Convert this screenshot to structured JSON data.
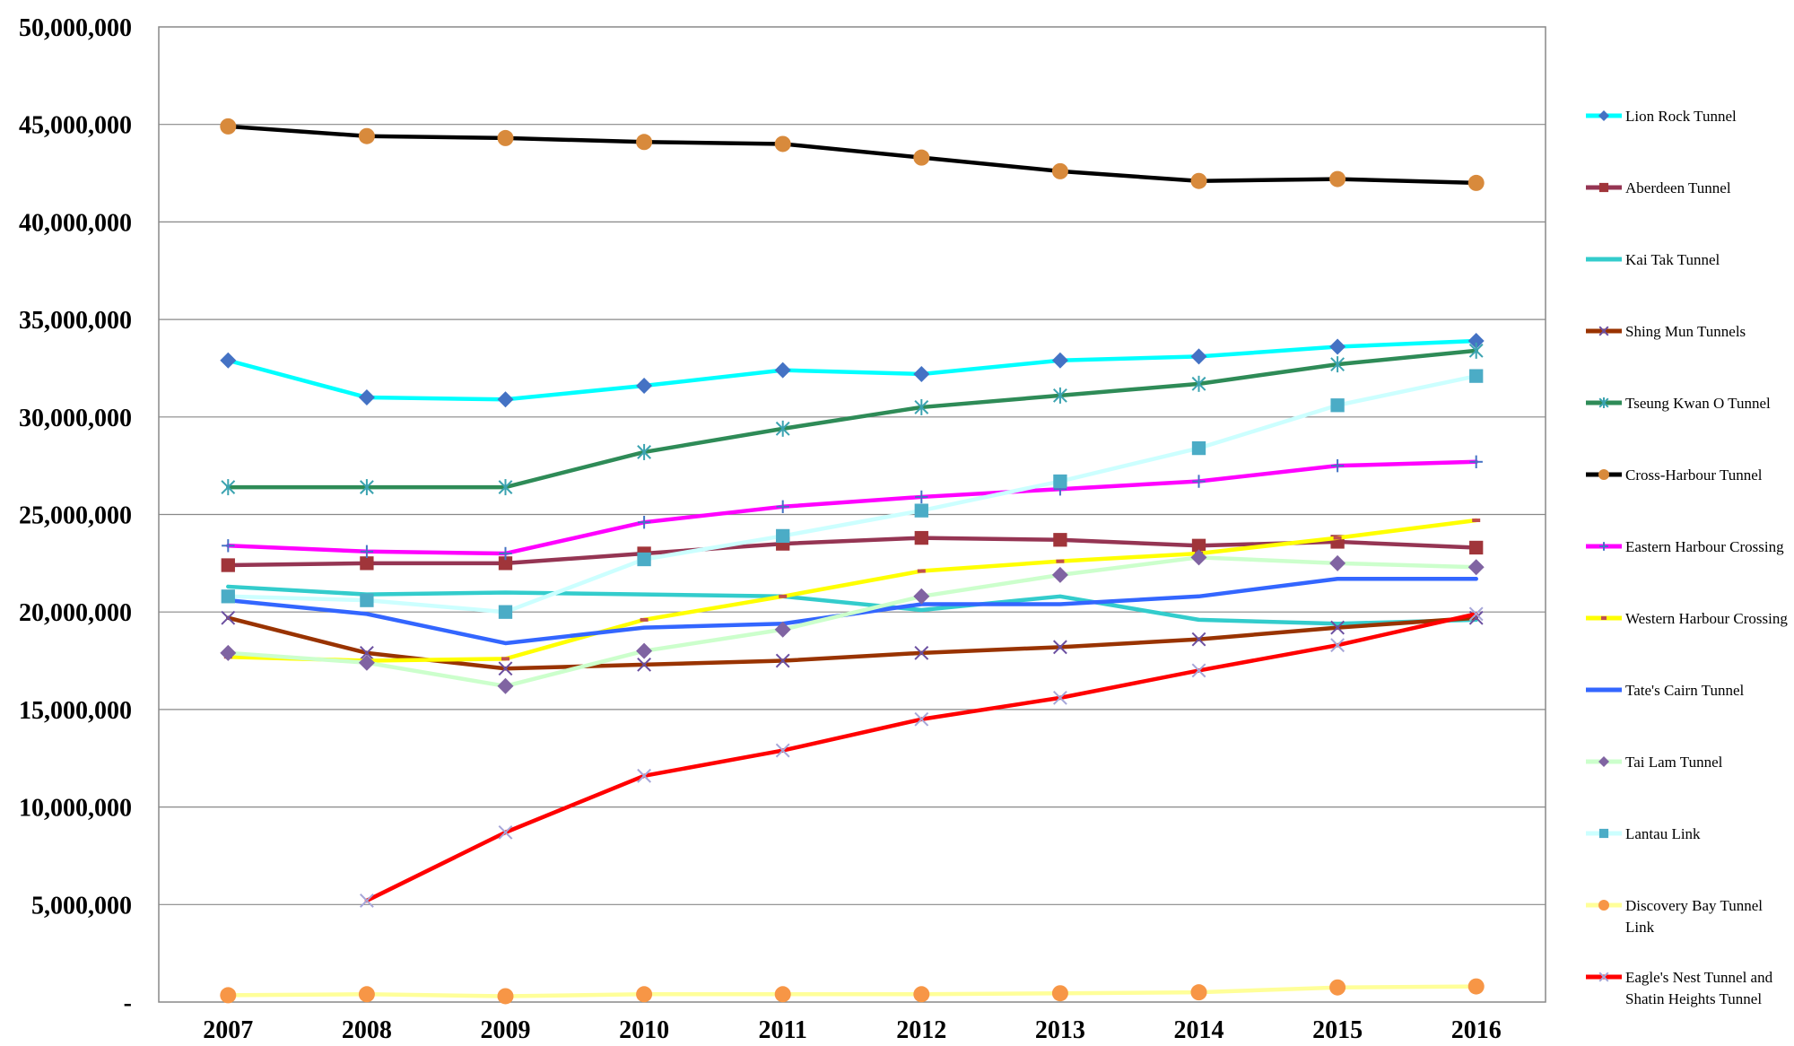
{
  "chart_data": {
    "type": "line",
    "title": "",
    "xlabel": "",
    "ylabel": "",
    "ylim": [
      0,
      50000000
    ],
    "grid": "horizontal",
    "legend_position": "right",
    "x": [
      2007,
      2008,
      2009,
      2010,
      2011,
      2012,
      2013,
      2014,
      2015,
      2016
    ],
    "x_tick_labels": [
      "2007",
      "2008",
      "2009",
      "2010",
      "2011",
      "2012",
      "2013",
      "2014",
      "2015",
      "2016"
    ],
    "y_tick_labels": [
      "-",
      "5,000,000",
      "10,000,000",
      "15,000,000",
      "20,000,000",
      "25,000,000",
      "30,000,000",
      "35,000,000",
      "40,000,000",
      "45,000,000",
      "50,000,000"
    ],
    "series": [
      {
        "name": "Lion Rock Tunnel",
        "line_color": "#00FFFF",
        "marker": "diamond",
        "marker_color": "#4472C4",
        "values": [
          32900000,
          31000000,
          30900000,
          31600000,
          32400000,
          32200000,
          32900000,
          33100000,
          33600000,
          33900000
        ]
      },
      {
        "name": "Aberdeen Tunnel",
        "line_color": "#953553",
        "marker": "square",
        "marker_color": "#A0353A",
        "values": [
          22400000,
          22500000,
          22500000,
          23000000,
          23500000,
          23800000,
          23700000,
          23400000,
          23600000,
          23300000
        ]
      },
      {
        "name": "Kai Tak Tunnel",
        "line_color": "#33CCCC",
        "marker": "none",
        "marker_color": "#33CCCC",
        "values": [
          21300000,
          20900000,
          21000000,
          20900000,
          20800000,
          20100000,
          20800000,
          19600000,
          19400000,
          19600000
        ]
      },
      {
        "name": "Shing Mun Tunnels",
        "line_color": "#993300",
        "marker": "x",
        "marker_color": "#6B4FA0",
        "values": [
          19700000,
          17900000,
          17100000,
          17300000,
          17500000,
          17900000,
          18200000,
          18600000,
          19200000,
          19700000
        ]
      },
      {
        "name": "Tseung Kwan O Tunnel",
        "line_color": "#2E8B57",
        "marker": "star",
        "marker_color": "#3BA3B0",
        "values": [
          26400000,
          26400000,
          26400000,
          28200000,
          29400000,
          30500000,
          31100000,
          31700000,
          32700000,
          33400000
        ]
      },
      {
        "name": "Cross-Harbour Tunnel",
        "line_color": "#000000",
        "marker": "circle",
        "marker_color": "#D88A3C",
        "values": [
          44900000,
          44400000,
          44300000,
          44100000,
          44000000,
          43300000,
          42600000,
          42100000,
          42200000,
          42000000
        ]
      },
      {
        "name": "Eastern Harbour Crossing",
        "line_color": "#FF00FF",
        "marker": "plus",
        "marker_color": "#4472C4",
        "values": [
          23400000,
          23100000,
          23000000,
          24600000,
          25400000,
          25900000,
          26300000,
          26700000,
          27500000,
          27700000
        ]
      },
      {
        "name": "Western Harbour Crossing",
        "line_color": "#FFFF00",
        "marker": "dash",
        "marker_color": "#C0504D",
        "values": [
          17700000,
          17500000,
          17600000,
          19600000,
          20800000,
          22100000,
          22600000,
          23000000,
          23800000,
          24700000
        ]
      },
      {
        "name": "Tate's Cairn Tunnel",
        "line_color": "#3366FF",
        "marker": "none",
        "marker_color": "#3366FF",
        "values": [
          20600000,
          19900000,
          18400000,
          19200000,
          19400000,
          20400000,
          20400000,
          20800000,
          21700000,
          21700000
        ]
      },
      {
        "name": "Tai Lam Tunnel",
        "line_color": "#CCFFCC",
        "marker": "diamond",
        "marker_color": "#8064A2",
        "values": [
          17900000,
          17400000,
          16200000,
          18000000,
          19100000,
          20800000,
          21900000,
          22800000,
          22500000,
          22300000
        ]
      },
      {
        "name": "Lantau Link",
        "line_color": "#CCFFFF",
        "marker": "square",
        "marker_color": "#4BACC6",
        "values": [
          20800000,
          20600000,
          20000000,
          22700000,
          23900000,
          25200000,
          26700000,
          28400000,
          30600000,
          32100000
        ]
      },
      {
        "name": "Discovery Bay Tunnel Link",
        "line_color": "#FFFF99",
        "marker": "circle",
        "marker_color": "#F79646",
        "values": [
          350000,
          400000,
          300000,
          400000,
          400000,
          400000,
          450000,
          500000,
          750000,
          800000
        ]
      },
      {
        "name": "Eagle's Nest Tunnel and Shatin Heights Tunnel",
        "line_color": "#FF0000",
        "marker": "x",
        "marker_color": "#A6A6D8",
        "values": [
          null,
          5200000,
          8700000,
          11600000,
          12900000,
          14500000,
          15600000,
          17000000,
          18300000,
          19900000
        ]
      }
    ],
    "legend": [
      {
        "lines": [
          "Lion Rock Tunnel"
        ]
      },
      {
        "lines": [
          "Aberdeen Tunnel"
        ]
      },
      {
        "lines": [
          "Kai Tak Tunnel"
        ]
      },
      {
        "lines": [
          "Shing Mun Tunnels"
        ]
      },
      {
        "lines": [
          "Tseung Kwan O Tunnel"
        ]
      },
      {
        "lines": [
          "Cross-Harbour Tunnel"
        ]
      },
      {
        "lines": [
          "Eastern Harbour Crossing"
        ]
      },
      {
        "lines": [
          "Western Harbour Crossing"
        ]
      },
      {
        "lines": [
          "Tate's Cairn Tunnel"
        ]
      },
      {
        "lines": [
          "Tai Lam Tunnel"
        ]
      },
      {
        "lines": [
          "Lantau Link"
        ]
      },
      {
        "lines": [
          "Discovery Bay Tunnel",
          "Link"
        ]
      },
      {
        "lines": [
          "Eagle's Nest Tunnel and",
          "Shatin Heights Tunnel"
        ]
      }
    ]
  }
}
